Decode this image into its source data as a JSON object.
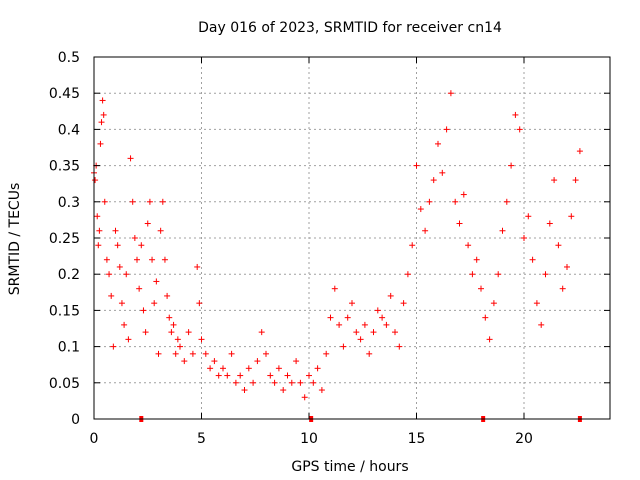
{
  "chart_data": {
    "type": "scatter",
    "title": "Day 016 of 2023, SRMTID for receiver cn14",
    "xlabel": "GPS time / hours",
    "ylabel": "SRMTID / TECUs",
    "xlim": [
      0,
      24
    ],
    "ylim": [
      0,
      0.5
    ],
    "x_ticks": [
      0,
      5,
      10,
      15,
      20
    ],
    "x_tick_labels": [
      "0",
      "5",
      "10",
      "15",
      "20"
    ],
    "y_ticks": [
      0,
      0.05,
      0.1,
      0.15,
      0.2,
      0.25,
      0.3,
      0.35,
      0.4,
      0.45,
      0.5
    ],
    "y_tick_labels": [
      "0",
      "0.05",
      "0.1",
      "0.15",
      "0.2",
      "0.25",
      "0.3",
      "0.35",
      "0.4",
      "0.45",
      "0.5"
    ],
    "grid": true,
    "marker": "plus",
    "color": "#ff0000",
    "series": [
      {
        "name": "SRMTID",
        "points": [
          [
            0.0,
            0.34
          ],
          [
            0.05,
            0.33
          ],
          [
            0.1,
            0.35
          ],
          [
            0.15,
            0.28
          ],
          [
            0.2,
            0.24
          ],
          [
            0.25,
            0.26
          ],
          [
            0.3,
            0.38
          ],
          [
            0.35,
            0.41
          ],
          [
            0.4,
            0.44
          ],
          [
            0.45,
            0.42
          ],
          [
            0.5,
            0.3
          ],
          [
            0.6,
            0.22
          ],
          [
            0.7,
            0.2
          ],
          [
            0.8,
            0.17
          ],
          [
            0.9,
            0.1
          ],
          [
            1.0,
            0.26
          ],
          [
            1.1,
            0.24
          ],
          [
            1.2,
            0.21
          ],
          [
            1.3,
            0.16
          ],
          [
            1.4,
            0.13
          ],
          [
            1.5,
            0.2
          ],
          [
            1.6,
            0.11
          ],
          [
            1.7,
            0.36
          ],
          [
            1.8,
            0.3
          ],
          [
            1.9,
            0.25
          ],
          [
            2.0,
            0.22
          ],
          [
            2.1,
            0.18
          ],
          [
            2.2,
            0.24
          ],
          [
            2.3,
            0.15
          ],
          [
            2.4,
            0.12
          ],
          [
            2.5,
            0.27
          ],
          [
            2.6,
            0.3
          ],
          [
            2.7,
            0.22
          ],
          [
            2.8,
            0.16
          ],
          [
            2.9,
            0.19
          ],
          [
            3.0,
            0.09
          ],
          [
            3.1,
            0.26
          ],
          [
            3.2,
            0.3
          ],
          [
            3.3,
            0.22
          ],
          [
            3.4,
            0.17
          ],
          [
            3.5,
            0.14
          ],
          [
            3.6,
            0.12
          ],
          [
            3.7,
            0.13
          ],
          [
            3.8,
            0.09
          ],
          [
            3.9,
            0.11
          ],
          [
            4.0,
            0.1
          ],
          [
            4.2,
            0.08
          ],
          [
            4.4,
            0.12
          ],
          [
            4.6,
            0.09
          ],
          [
            4.8,
            0.21
          ],
          [
            4.9,
            0.16
          ],
          [
            5.0,
            0.11
          ],
          [
            5.2,
            0.09
          ],
          [
            5.4,
            0.07
          ],
          [
            5.6,
            0.08
          ],
          [
            5.8,
            0.06
          ],
          [
            6.0,
            0.07
          ],
          [
            6.2,
            0.06
          ],
          [
            6.4,
            0.09
          ],
          [
            6.6,
            0.05
          ],
          [
            6.8,
            0.06
          ],
          [
            7.0,
            0.04
          ],
          [
            7.2,
            0.07
          ],
          [
            7.4,
            0.05
          ],
          [
            7.6,
            0.08
          ],
          [
            7.8,
            0.12
          ],
          [
            8.0,
            0.09
          ],
          [
            8.2,
            0.06
          ],
          [
            8.4,
            0.05
          ],
          [
            8.6,
            0.07
          ],
          [
            8.8,
            0.04
          ],
          [
            9.0,
            0.06
          ],
          [
            9.2,
            0.05
          ],
          [
            9.4,
            0.08
          ],
          [
            9.6,
            0.05
          ],
          [
            9.8,
            0.03
          ],
          [
            10.0,
            0.06
          ],
          [
            10.2,
            0.05
          ],
          [
            10.4,
            0.07
          ],
          [
            10.6,
            0.04
          ],
          [
            10.8,
            0.09
          ],
          [
            11.0,
            0.14
          ],
          [
            11.2,
            0.18
          ],
          [
            11.4,
            0.13
          ],
          [
            11.6,
            0.1
          ],
          [
            11.8,
            0.14
          ],
          [
            12.0,
            0.16
          ],
          [
            12.2,
            0.12
          ],
          [
            12.4,
            0.11
          ],
          [
            12.6,
            0.13
          ],
          [
            12.8,
            0.09
          ],
          [
            13.0,
            0.12
          ],
          [
            13.2,
            0.15
          ],
          [
            13.4,
            0.14
          ],
          [
            13.6,
            0.13
          ],
          [
            13.8,
            0.17
          ],
          [
            14.0,
            0.12
          ],
          [
            14.2,
            0.1
          ],
          [
            14.4,
            0.16
          ],
          [
            14.6,
            0.2
          ],
          [
            14.8,
            0.24
          ],
          [
            15.0,
            0.35
          ],
          [
            15.2,
            0.29
          ],
          [
            15.4,
            0.26
          ],
          [
            15.6,
            0.3
          ],
          [
            15.8,
            0.33
          ],
          [
            16.0,
            0.38
          ],
          [
            16.2,
            0.34
          ],
          [
            16.4,
            0.4
          ],
          [
            16.6,
            0.45
          ],
          [
            16.8,
            0.3
          ],
          [
            17.0,
            0.27
          ],
          [
            17.2,
            0.31
          ],
          [
            17.4,
            0.24
          ],
          [
            17.6,
            0.2
          ],
          [
            17.8,
            0.22
          ],
          [
            18.0,
            0.18
          ],
          [
            18.2,
            0.14
          ],
          [
            18.4,
            0.11
          ],
          [
            18.6,
            0.16
          ],
          [
            18.8,
            0.2
          ],
          [
            19.0,
            0.26
          ],
          [
            19.2,
            0.3
          ],
          [
            19.4,
            0.35
          ],
          [
            19.6,
            0.42
          ],
          [
            19.8,
            0.4
          ],
          [
            20.0,
            0.25
          ],
          [
            20.2,
            0.28
          ],
          [
            20.4,
            0.22
          ],
          [
            20.6,
            0.16
          ],
          [
            20.8,
            0.13
          ],
          [
            21.0,
            0.2
          ],
          [
            21.2,
            0.27
          ],
          [
            21.4,
            0.33
          ],
          [
            21.6,
            0.24
          ],
          [
            21.8,
            0.18
          ],
          [
            22.0,
            0.21
          ],
          [
            22.2,
            0.28
          ],
          [
            22.4,
            0.33
          ],
          [
            22.6,
            0.37
          ]
        ]
      }
    ],
    "gap_markers": [
      2.2,
      10.1,
      18.1,
      22.6
    ]
  }
}
